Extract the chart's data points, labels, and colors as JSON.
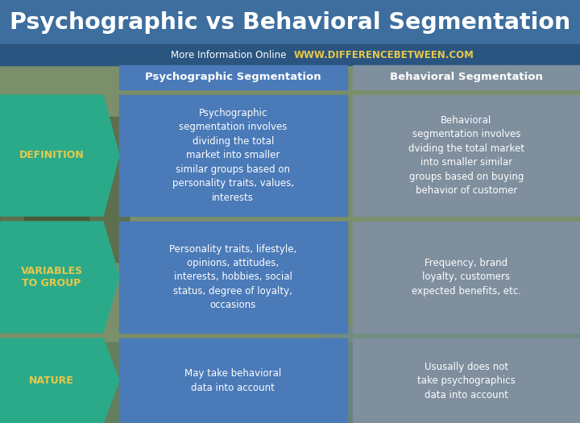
{
  "title": "Psychographic vs Behavioral Segmentation",
  "subtitle_left": "More Information Online",
  "subtitle_right": "WWW.DIFFERENCEBETWEEN.COM",
  "col1_header": "Psychographic Segmentation",
  "col2_header": "Behavioral Segmentation",
  "rows": [
    {
      "label": "DEFINITION",
      "col1": "Psychographic\nsegmentation involves\ndividing the total\nmarket into smaller\nsimilar groups based on\npersonality traits, values,\ninterests",
      "col2": "Behavioral\nsegmentation involves\ndviding the total market\ninto smaller similar\ngroups based on buying\nbehavior of customer"
    },
    {
      "label": "VARIABLES\nTO GROUP",
      "col1": "Personality traits, lifestyle,\nopinions, attitudes,\ninterests, hobbies, social\nstatus, degree of loyalty,\noccasions",
      "col2": "Frequency, brand\nloyalty, customers\nexpected benefits, etc."
    },
    {
      "label": "NATURE",
      "col1": "May take behavioral\ndata into account",
      "col2": "Ususally does not\ntake psychographics\ndata into account"
    }
  ],
  "title_bg": "#3d6e9e",
  "title_color": "#ffffff",
  "subtitle_left_color": "#ffffff",
  "subtitle_right_color": "#e8c84a",
  "col1_header_bg": "#4a7ab8",
  "col2_header_bg": "#7f8f9e",
  "header_text_color": "#ffffff",
  "col1_cell_bg": "#4a7ab8",
  "col2_cell_bg": "#7f8f9e",
  "cell_text_color": "#ffffff",
  "row_label_bg": "#2baa8a",
  "row_label_text_color": "#e8c84a",
  "bg_color": "#9aaa88",
  "fig_width": 7.2,
  "fig_height": 5.25,
  "dpi": 100
}
